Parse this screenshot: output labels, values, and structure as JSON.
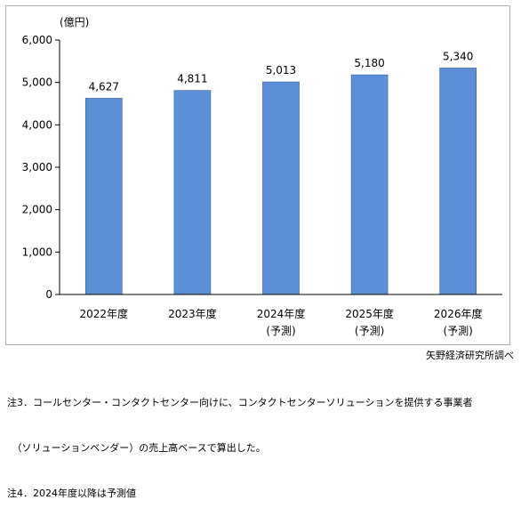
{
  "chart_data": {
    "type": "bar",
    "unit_label": "(億円)",
    "categories": [
      "2022年度",
      "2023年度",
      "2024年度",
      "2025年度",
      "2026年度"
    ],
    "category_sublabels": [
      "",
      "",
      "(予測)",
      "(予測)",
      "(予測)"
    ],
    "values": [
      4627,
      4811,
      5013,
      5180,
      5340
    ],
    "data_labels": [
      "4,627",
      "4,811",
      "5,013",
      "5,180",
      "5,340"
    ],
    "yticks": [
      "0",
      "1,000",
      "2,000",
      "3,000",
      "4,000",
      "5,000",
      "6,000"
    ],
    "ylim": [
      0,
      6000
    ],
    "bar_color": "#5b8fd6",
    "grid": false,
    "legend": "none"
  },
  "source": "矢野経済研究所調べ",
  "notes": [
    "注3．コールセンター・コンタクトセンター向けに、コンタクトセンターソリューションを提供する事業者",
    "　（ソリューションベンダー）の売上高ベースで算出した。",
    "注4．2024年度以降は予測値"
  ]
}
